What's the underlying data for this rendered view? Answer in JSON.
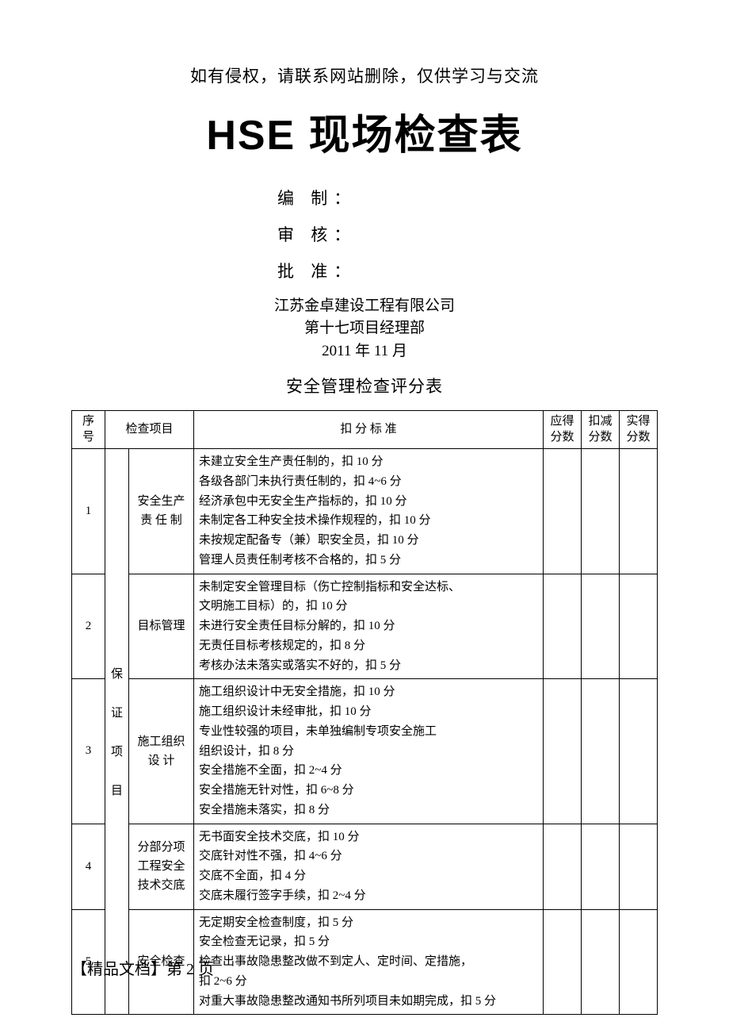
{
  "notice": "如有侵权，请联系网站删除，仅供学习与交流",
  "main_title": "HSE 现场检查表",
  "meta": {
    "compile": "编  制：",
    "review": "审  核：",
    "approve": "批  准："
  },
  "org": {
    "company": "江苏金卓建设工程有限公司",
    "dept": "第十七项目经理部",
    "date": "2011 年 11 月"
  },
  "sub_title": "安全管理检查评分表",
  "table": {
    "header": {
      "seq": "序号",
      "item_group": "检查项目",
      "criteria": "扣 分 标 准",
      "should": "应得\n分数",
      "deduct": "扣减\n分数",
      "actual": "实得\n分数"
    },
    "category_text": "保\n证\n项\n目",
    "rows": [
      {
        "seq": "1",
        "item": "安全生产\n责 任 制",
        "criteria": [
          "未建立安全生产责任制的，扣 10 分",
          "各级各部门未执行责任制的，扣 4~6 分",
          "经济承包中无安全生产指标的，扣 10 分",
          "未制定各工种安全技术操作规程的，扣 10 分",
          "未按规定配备专（兼）职安全员，扣 10 分",
          "管理人员责任制考核不合格的，扣 5 分"
        ]
      },
      {
        "seq": "2",
        "item": "目标管理",
        "criteria": [
          "未制定安全管理目标（伤亡控制指标和安全达标、",
          "文明施工目标）的，扣 10 分",
          "未进行安全责任目标分解的，扣 10 分",
          "无责任目标考核规定的，扣 8 分",
          "考核办法未落实或落实不好的，扣 5 分"
        ]
      },
      {
        "seq": "3",
        "item": "施工组织\n设  计",
        "criteria": [
          "施工组织设计中无安全措施，扣 10 分",
          "施工组织设计未经审批，扣 10 分",
          "专业性较强的项目，未单独编制专项安全施工",
          "组织设计，扣 8 分",
          "安全措施不全面，扣 2~4 分",
          "安全措施无针对性，扣 6~8 分",
          "安全措施未落实，扣 8 分"
        ]
      },
      {
        "seq": "4",
        "item": "分部分项\n工程安全\n技术交底",
        "criteria": [
          "无书面安全技术交底，扣 10 分",
          "交底针对性不强，扣 4~6 分",
          "交底不全面，扣 4 分",
          "交底未履行签字手续，扣 2~4 分"
        ]
      },
      {
        "seq": "5",
        "item": "安全检查",
        "criteria": [
          "无定期安全检查制度，扣 5 分",
          "安全检查无记录，扣 5 分",
          "检查出事故隐患整改做不到定人、定时间、定措施，",
          "扣 2~6 分",
          "对重大事故隐患整改通知书所列项目未如期完成，扣 5 分"
        ]
      }
    ]
  },
  "footer": "【精品文档】第 2 页"
}
